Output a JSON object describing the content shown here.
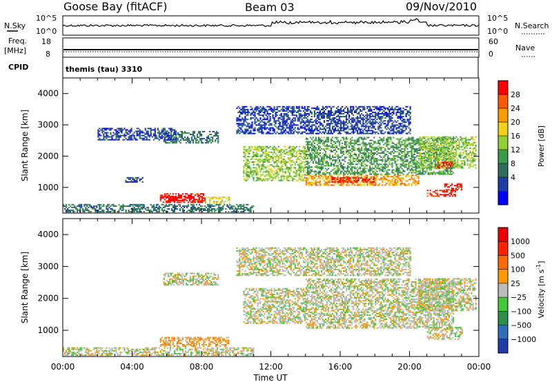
{
  "header": {
    "station": "Goose Bay (fitACF)",
    "beam": "Beam 03",
    "date": "09/Nov/2010"
  },
  "noise_panel": {
    "left_label": "N.Sky",
    "right_label": "N.Search",
    "left_ticks": [
      "10^5",
      "10^0"
    ],
    "right_ticks": [
      "10^5",
      "10^0"
    ]
  },
  "freq_panel": {
    "left_label_1": "Freq.",
    "left_label_2": "[MHz]",
    "right_label": "Nave",
    "left_ticks": [
      "18",
      "8"
    ],
    "right_ticks": [
      "60",
      "0"
    ]
  },
  "cpid": {
    "label": "CPID",
    "value": "themis (tau) 3310"
  },
  "chart_data": [
    {
      "type": "heatmap",
      "name": "power",
      "ylabel": "Slant Range [km]",
      "ylim": [
        180,
        4500
      ],
      "yticks": [
        "1000",
        "2000",
        "3000",
        "4000"
      ],
      "xlim": [
        0,
        24
      ],
      "colorbar": {
        "label": "Power [dB]",
        "ticks": [
          "28",
          "24",
          "20",
          "16",
          "12",
          "8",
          "4"
        ],
        "colors": [
          "#0000ff",
          "#1c3da8",
          "#2e6d5e",
          "#3c9b4a",
          "#8fcf3a",
          "#f0d21c",
          "#ff9900",
          "#ff5a00",
          "#ff0000"
        ]
      },
      "regions": [
        {
          "t0": 5.6,
          "t1": 8.2,
          "r0": 500,
          "r1": 780,
          "level": 8
        },
        {
          "t0": 6.0,
          "t1": 7.4,
          "r0": 560,
          "r1": 700,
          "level": 9
        },
        {
          "t0": 8.2,
          "t1": 9.6,
          "r0": 480,
          "r1": 700,
          "level": 5
        },
        {
          "t0": 0.0,
          "t1": 11.0,
          "r0": 200,
          "r1": 470,
          "level": 2
        },
        {
          "t0": 5.8,
          "t1": 9.0,
          "r0": 2400,
          "r1": 2800,
          "level": 2
        },
        {
          "t0": 2.0,
          "t1": 6.5,
          "r0": 2500,
          "r1": 2900,
          "level": 1
        },
        {
          "t0": 3.6,
          "t1": 4.6,
          "r0": 1150,
          "r1": 1300,
          "level": 1
        },
        {
          "t0": 10.4,
          "t1": 14.0,
          "r0": 1200,
          "r1": 2300,
          "level": 4
        },
        {
          "t0": 14.0,
          "t1": 20.5,
          "r0": 1050,
          "r1": 1400,
          "level": 6
        },
        {
          "t0": 15.5,
          "t1": 18.0,
          "r0": 1150,
          "r1": 1300,
          "level": 8
        },
        {
          "t0": 14.0,
          "t1": 22.5,
          "r0": 1400,
          "r1": 2600,
          "level": 3
        },
        {
          "t0": 20.5,
          "t1": 23.8,
          "r0": 1600,
          "r1": 2600,
          "level": 4
        },
        {
          "t0": 21.6,
          "t1": 22.4,
          "r0": 1600,
          "r1": 1800,
          "level": 8
        },
        {
          "t0": 21.0,
          "t1": 22.6,
          "r0": 700,
          "r1": 900,
          "level": 8
        },
        {
          "t0": 22.0,
          "t1": 23.0,
          "r0": 900,
          "r1": 1100,
          "level": 8
        },
        {
          "t0": 10.0,
          "t1": 20.0,
          "r0": 2700,
          "r1": 3600,
          "level": 1
        }
      ]
    },
    {
      "type": "heatmap",
      "name": "velocity",
      "ylabel": "Slant Range [km]",
      "xlabel": "Time UT",
      "ylim": [
        180,
        4500
      ],
      "yticks": [
        "1000",
        "2000",
        "3000",
        "4000"
      ],
      "xticks": [
        "00:00",
        "04:00",
        "08:00",
        "12:00",
        "16:00",
        "20:00",
        "00:00"
      ],
      "xlim": [
        0,
        24
      ],
      "colorbar": {
        "label_main": "Velocity",
        "label_unit": "[m s",
        "label_exp": "-1",
        "label_close": "]",
        "ticks": [
          "1000",
          "500",
          "100",
          "25",
          "−25",
          "−100",
          "−500",
          "−1000"
        ],
        "colors": [
          "#1c3daa",
          "#2f6db8",
          "#2e8d4a",
          "#46c73a",
          "#bbbbbb",
          "#ff9900",
          "#ff6a00",
          "#ff2000",
          "#ee0000"
        ]
      },
      "regions": [
        {
          "t0": 5.6,
          "t1": 9.6,
          "r0": 480,
          "r1": 780,
          "level": 5
        },
        {
          "t0": 0.0,
          "t1": 11.0,
          "r0": 200,
          "r1": 470,
          "level": 4
        },
        {
          "t0": 5.8,
          "t1": 9.0,
          "r0": 2400,
          "r1": 2800,
          "level": 4
        },
        {
          "t0": 10.4,
          "t1": 14.0,
          "r0": 1200,
          "r1": 2300,
          "level": 4
        },
        {
          "t0": 14.0,
          "t1": 22.5,
          "r0": 1050,
          "r1": 2600,
          "level": 4
        },
        {
          "t0": 20.5,
          "t1": 23.8,
          "r0": 1600,
          "r1": 2600,
          "level": 4
        },
        {
          "t0": 21.0,
          "t1": 23.0,
          "r0": 700,
          "r1": 1100,
          "level": 4
        },
        {
          "t0": 10.0,
          "t1": 20.0,
          "r0": 2700,
          "r1": 3600,
          "level": 4
        }
      ]
    }
  ]
}
